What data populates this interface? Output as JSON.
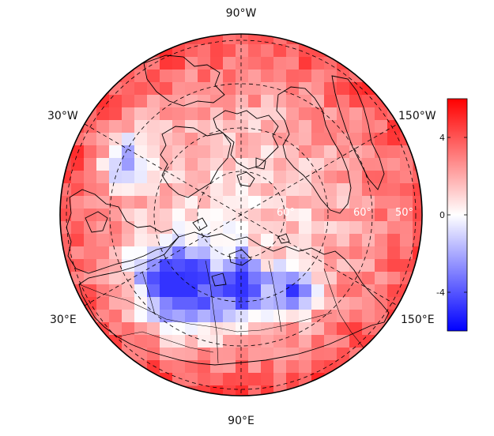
{
  "map": {
    "projection": "north-polar-stereographic",
    "longitude_labels": {
      "top": "90°W",
      "upper_left": "30°W",
      "upper_right": "150°W",
      "lower_left": "30°E",
      "lower_right": "150°E",
      "bottom": "90°E"
    },
    "latitude_labels": [
      "60°",
      "60°",
      "50°"
    ],
    "colormap": "blue-white-red diverging",
    "colors": {
      "low": "#0000ff",
      "mid": "#ffffff",
      "high": "#ff0000",
      "coast": "#000000",
      "grid": "#000000"
    }
  },
  "colorbar": {
    "min": -6,
    "max": 6,
    "ticks": [
      "4",
      "0",
      "-4"
    ],
    "tick_values": [
      4,
      0,
      -4
    ]
  }
}
